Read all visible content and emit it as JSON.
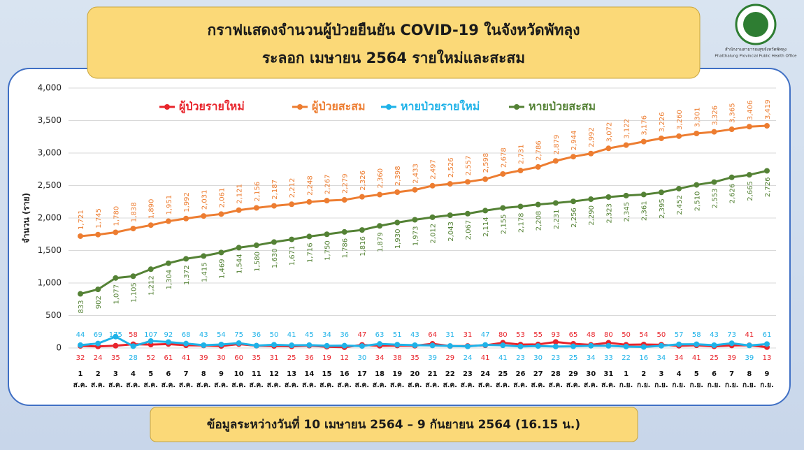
{
  "logo": {
    "org_th": "สำนักงานสาธารณสุขจังหวัดพัทลุง",
    "org_en": "Phatthalung Provincial Public Health Office"
  },
  "chart_data": {
    "type": "line",
    "title": "กราฟแสดงจำนวนผู้ป่วยยืนยัน COVID-19 ในจังหวัดพัทลุง",
    "subtitle": "ระลอก เมษายน 2564 รายใหม่และสะสม",
    "note": "ข้อมูลระหว่างวันที่ 10 เมษายน 2564 – 9 กันยายน 2564 (16.15 น.)",
    "y_label": "จำนวน (ราย)",
    "categories": [
      "1 ส.ค.",
      "2 ส.ค.",
      "3 ส.ค.",
      "4 ส.ค.",
      "5 ส.ค.",
      "6 ส.ค.",
      "7 ส.ค.",
      "8 ส.ค.",
      "9 ส.ค.",
      "10 ส.ค.",
      "11 ส.ค.",
      "12 ส.ค.",
      "13 ส.ค.",
      "14 ส.ค.",
      "15 ส.ค.",
      "16 ส.ค.",
      "17 ส.ค.",
      "18 ส.ค.",
      "19 ส.ค.",
      "20 ส.ค.",
      "21 ส.ค.",
      "22 ส.ค.",
      "23 ส.ค.",
      "24 ส.ค.",
      "25 ส.ค.",
      "26 ส.ค.",
      "27 ส.ค.",
      "28 ส.ค.",
      "29 ส.ค.",
      "30 ส.ค.",
      "31 ส.ค.",
      "1 ก.ย.",
      "2 ก.ย.",
      "3 ก.ย.",
      "4 ก.ย.",
      "5 ก.ย.",
      "6 ก.ย.",
      "7 ก.ย.",
      "8 ก.ย.",
      "9 ก.ย."
    ],
    "ylim": [
      0,
      4000
    ],
    "yticks": [
      0,
      500,
      {
        "value": 1000,
        "label": "1,000"
      },
      {
        "value": 1500,
        "label": "1,500"
      },
      {
        "value": 2000,
        "label": "2,000"
      },
      {
        "value": 2500,
        "label": "2,500"
      },
      {
        "value": 3000,
        "label": "3,000"
      },
      {
        "value": 3500,
        "label": "3,500"
      },
      {
        "value": 4000,
        "label": "4,000"
      }
    ],
    "grid": true,
    "legend": "top",
    "series": [
      {
        "name": "ผู้ป่วยรายใหม่",
        "color": "#e8242b",
        "values": [
          32,
          24,
          35,
          58,
          52,
          61,
          41,
          39,
          30,
          60,
          35,
          31,
          25,
          36,
          19,
          12,
          47,
          34,
          38,
          35,
          64,
          29,
          31,
          41,
          80,
          53,
          55,
          93,
          65,
          48,
          80,
          50,
          54,
          50,
          34,
          41,
          25,
          39,
          41,
          13
        ]
      },
      {
        "name": "ผู้ป่วยสะสม",
        "color": "#ed7d31",
        "values": [
          1721,
          1745,
          1780,
          1838,
          1890,
          1951,
          1992,
          2031,
          2061,
          2121,
          2156,
          2187,
          2212,
          2248,
          2267,
          2279,
          2326,
          2360,
          2398,
          2433,
          2497,
          2526,
          2557,
          2598,
          2678,
          2731,
          2786,
          2879,
          2944,
          2992,
          3072,
          3122,
          3176,
          3226,
          3260,
          3301,
          3326,
          3365,
          3406,
          3419
        ],
        "value_labels": [
          "1,721",
          "1,745",
          "1,780",
          "1,838",
          "1,890",
          "1,951",
          "1,992",
          "2,031",
          "2,061",
          "2,121",
          "2,156",
          "2,187",
          "2,212",
          "2,248",
          "2,267",
          "2,279",
          "2,326",
          "2,360",
          "2,398",
          "2,433",
          "2,497",
          "2,526",
          "2,557",
          "2,598",
          "2,678",
          "2,731",
          "2,786",
          "2,879",
          "2,944",
          "2,992",
          "3,072",
          "3,122",
          "3,176",
          "3,226",
          "3,260",
          "3,301",
          "3,326",
          "3,365",
          "3,406",
          "3,419"
        ]
      },
      {
        "name": "หายป่วยรายใหม่",
        "color": "#1eb2e8",
        "values": [
          44,
          69,
          175,
          28,
          107,
          92,
          68,
          43,
          54,
          75,
          36,
          50,
          41,
          45,
          34,
          36,
          30,
          63,
          51,
          43,
          39,
          31,
          24,
          47,
          41,
          23,
          30,
          23,
          25,
          34,
          33,
          22,
          16,
          34,
          57,
          58,
          43,
          73,
          39,
          61
        ]
      },
      {
        "name": "หายป่วยสะสม",
        "color": "#548235",
        "values": [
          833,
          902,
          1077,
          1105,
          1212,
          1304,
          1372,
          1415,
          1469,
          1544,
          1580,
          1630,
          1671,
          1716,
          1750,
          1786,
          1816,
          1879,
          1930,
          1973,
          2012,
          2043,
          2067,
          2114,
          2155,
          2178,
          2208,
          2231,
          2256,
          2290,
          2323,
          2345,
          2361,
          2395,
          2452,
          2510,
          2553,
          2626,
          2665,
          2726
        ],
        "value_labels": [
          "833",
          "902",
          "1,077",
          "1,105",
          "1,212",
          "1,304",
          "1,372",
          "1,415",
          "1,469",
          "1,544",
          "1,580",
          "1,630",
          "1,671",
          "1,716",
          "1,750",
          "1,786",
          "1,816",
          "1,879",
          "1,930",
          "1,973",
          "2,012",
          "2,043",
          "2,067",
          "2,114",
          "2,155",
          "2,178",
          "2,208",
          "2,231",
          "2,256",
          "2,290",
          "2,323",
          "2,345",
          "2,361",
          "2,395",
          "2,452",
          "2,510",
          "2,553",
          "2,626",
          "2,665",
          "2,726"
        ]
      }
    ]
  }
}
